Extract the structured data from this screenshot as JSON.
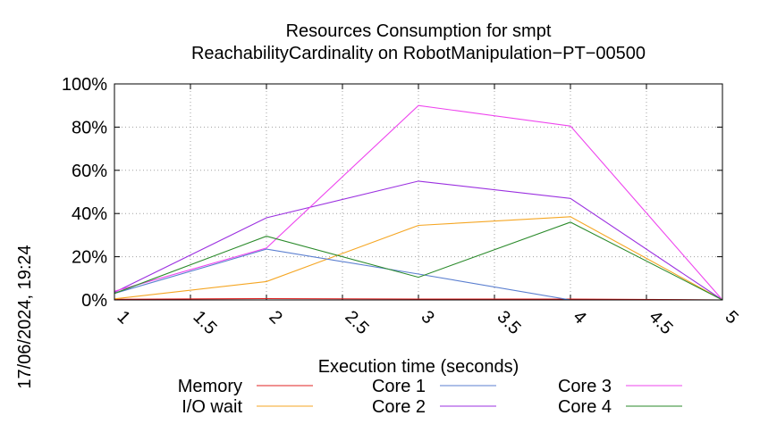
{
  "chart_data": {
    "type": "line",
    "title": [
      "Resources Consumption for smpt",
      "ReachabilityCardinality on RobotManipulation−PT−00500"
    ],
    "xlabel": "Execution time (seconds)",
    "ylabel": "",
    "xlim": [
      1,
      5
    ],
    "ylim": [
      0,
      100
    ],
    "x_ticks": [
      "1",
      "1.5",
      "2",
      "2.5",
      "3",
      "3.5",
      "4",
      "4.5",
      "5"
    ],
    "x_tick_values": [
      1,
      1.5,
      2,
      2.5,
      3,
      3.5,
      4,
      4.5,
      5
    ],
    "y_ticks": [
      "0%",
      "20%",
      "40%",
      "60%",
      "80%",
      "100%"
    ],
    "y_tick_values": [
      0,
      20,
      40,
      60,
      80,
      100
    ],
    "grid": true,
    "legend_position": "bottom",
    "side_label": "17/06/2024, 19:24",
    "series": [
      {
        "name": "Memory",
        "color": "#e02020",
        "x": [
          1,
          2,
          3,
          4,
          5
        ],
        "values": [
          0.3,
          0.6,
          0.4,
          0.4,
          0
        ]
      },
      {
        "name": "I/O wait",
        "color": "#f5a623",
        "x": [
          1,
          2,
          3,
          4,
          5
        ],
        "values": [
          0.5,
          8.5,
          34.5,
          38.5,
          0
        ]
      },
      {
        "name": "Core 1",
        "color": "#5b7fd0",
        "x": [
          1,
          2,
          3,
          4,
          5
        ],
        "values": [
          3,
          23.5,
          12,
          0,
          0
        ]
      },
      {
        "name": "Core 2",
        "color": "#9b30e0",
        "x": [
          1,
          2,
          3,
          4,
          5
        ],
        "values": [
          3.5,
          38,
          55,
          47,
          0
        ]
      },
      {
        "name": "Core 3",
        "color": "#ee44ee",
        "x": [
          1,
          2,
          3,
          4,
          5
        ],
        "values": [
          4,
          24,
          90,
          80.5,
          0
        ]
      },
      {
        "name": "Core 4",
        "color": "#2a8a2a",
        "x": [
          1,
          2,
          3,
          4,
          5
        ],
        "values": [
          3,
          29.5,
          10.5,
          36,
          0
        ]
      }
    ]
  }
}
